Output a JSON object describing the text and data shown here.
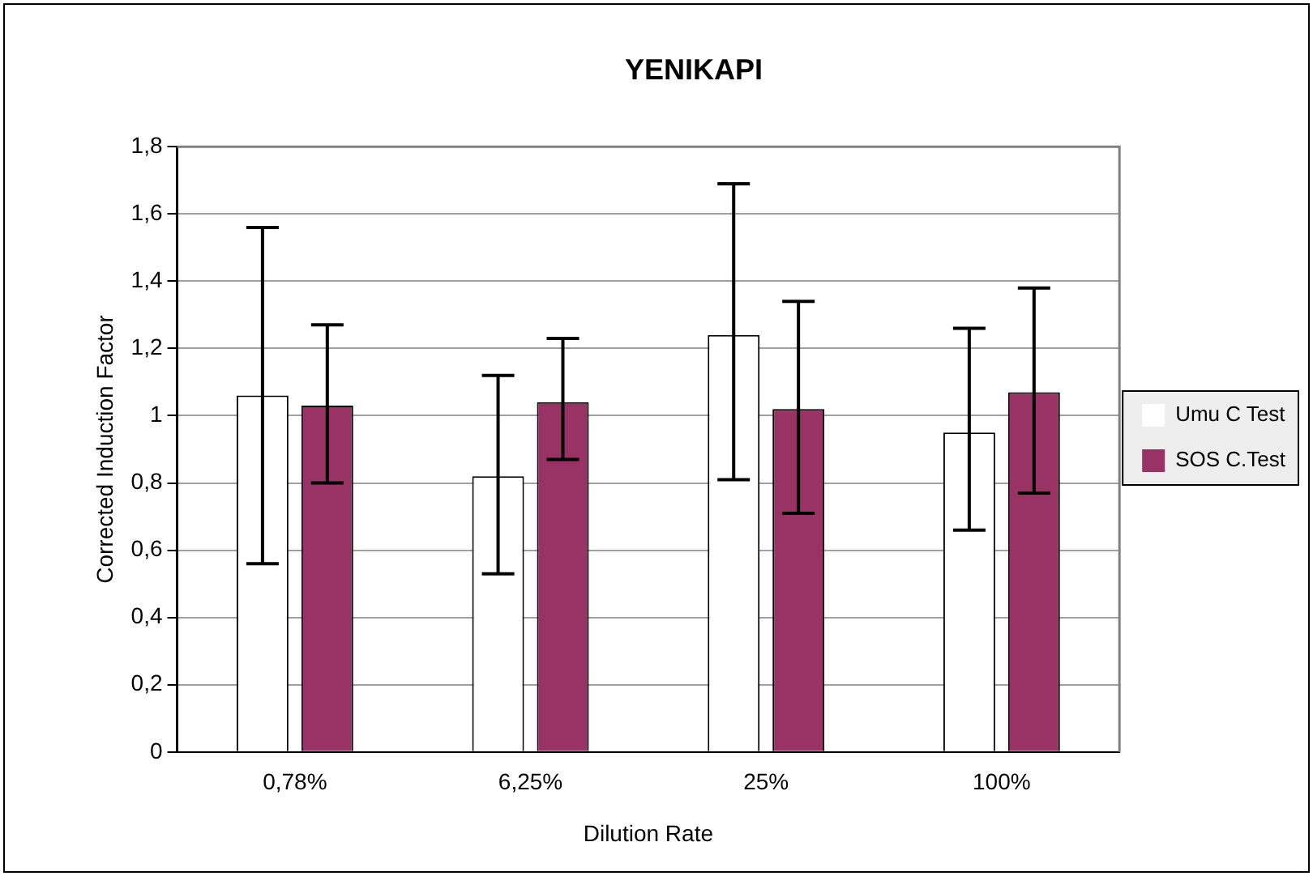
{
  "chart_data": {
    "type": "bar",
    "title": "YENIKAPI",
    "xlabel": "Dilution Rate",
    "ylabel": "Corrected Induction Factor",
    "categories": [
      "0,78%",
      "6,25%",
      "25%",
      "100%"
    ],
    "series": [
      {
        "name": "Umu C Test",
        "color": "#ffffff",
        "values": [
          1.06,
          0.82,
          1.24,
          0.95
        ],
        "errors": [
          [
            0.56,
            1.56
          ],
          [
            0.53,
            1.12
          ],
          [
            0.81,
            1.69
          ],
          [
            0.66,
            1.26
          ]
        ]
      },
      {
        "name": "SOS C.Test",
        "color": "#993366",
        "values": [
          1.03,
          1.04,
          1.02,
          1.07
        ],
        "errors": [
          [
            0.8,
            1.27
          ],
          [
            0.87,
            1.23
          ],
          [
            0.71,
            1.34
          ],
          [
            0.77,
            1.38
          ]
        ]
      }
    ],
    "ylim": [
      0,
      1.8
    ],
    "yticks": [
      0,
      {
        "value": 0.2,
        "label": "0,2"
      },
      {
        "value": 0.4,
        "label": "0,4"
      },
      {
        "value": 0.6,
        "label": "0,6"
      },
      {
        "value": 0.8,
        "label": "0,8"
      },
      1,
      {
        "value": 1.2,
        "label": "1,2"
      },
      {
        "value": 1.4,
        "label": "1,4"
      },
      {
        "value": 1.6,
        "label": "1,6"
      },
      {
        "value": 1.8,
        "label": "1,8"
      }
    ],
    "grid": "y",
    "legend": "right"
  }
}
